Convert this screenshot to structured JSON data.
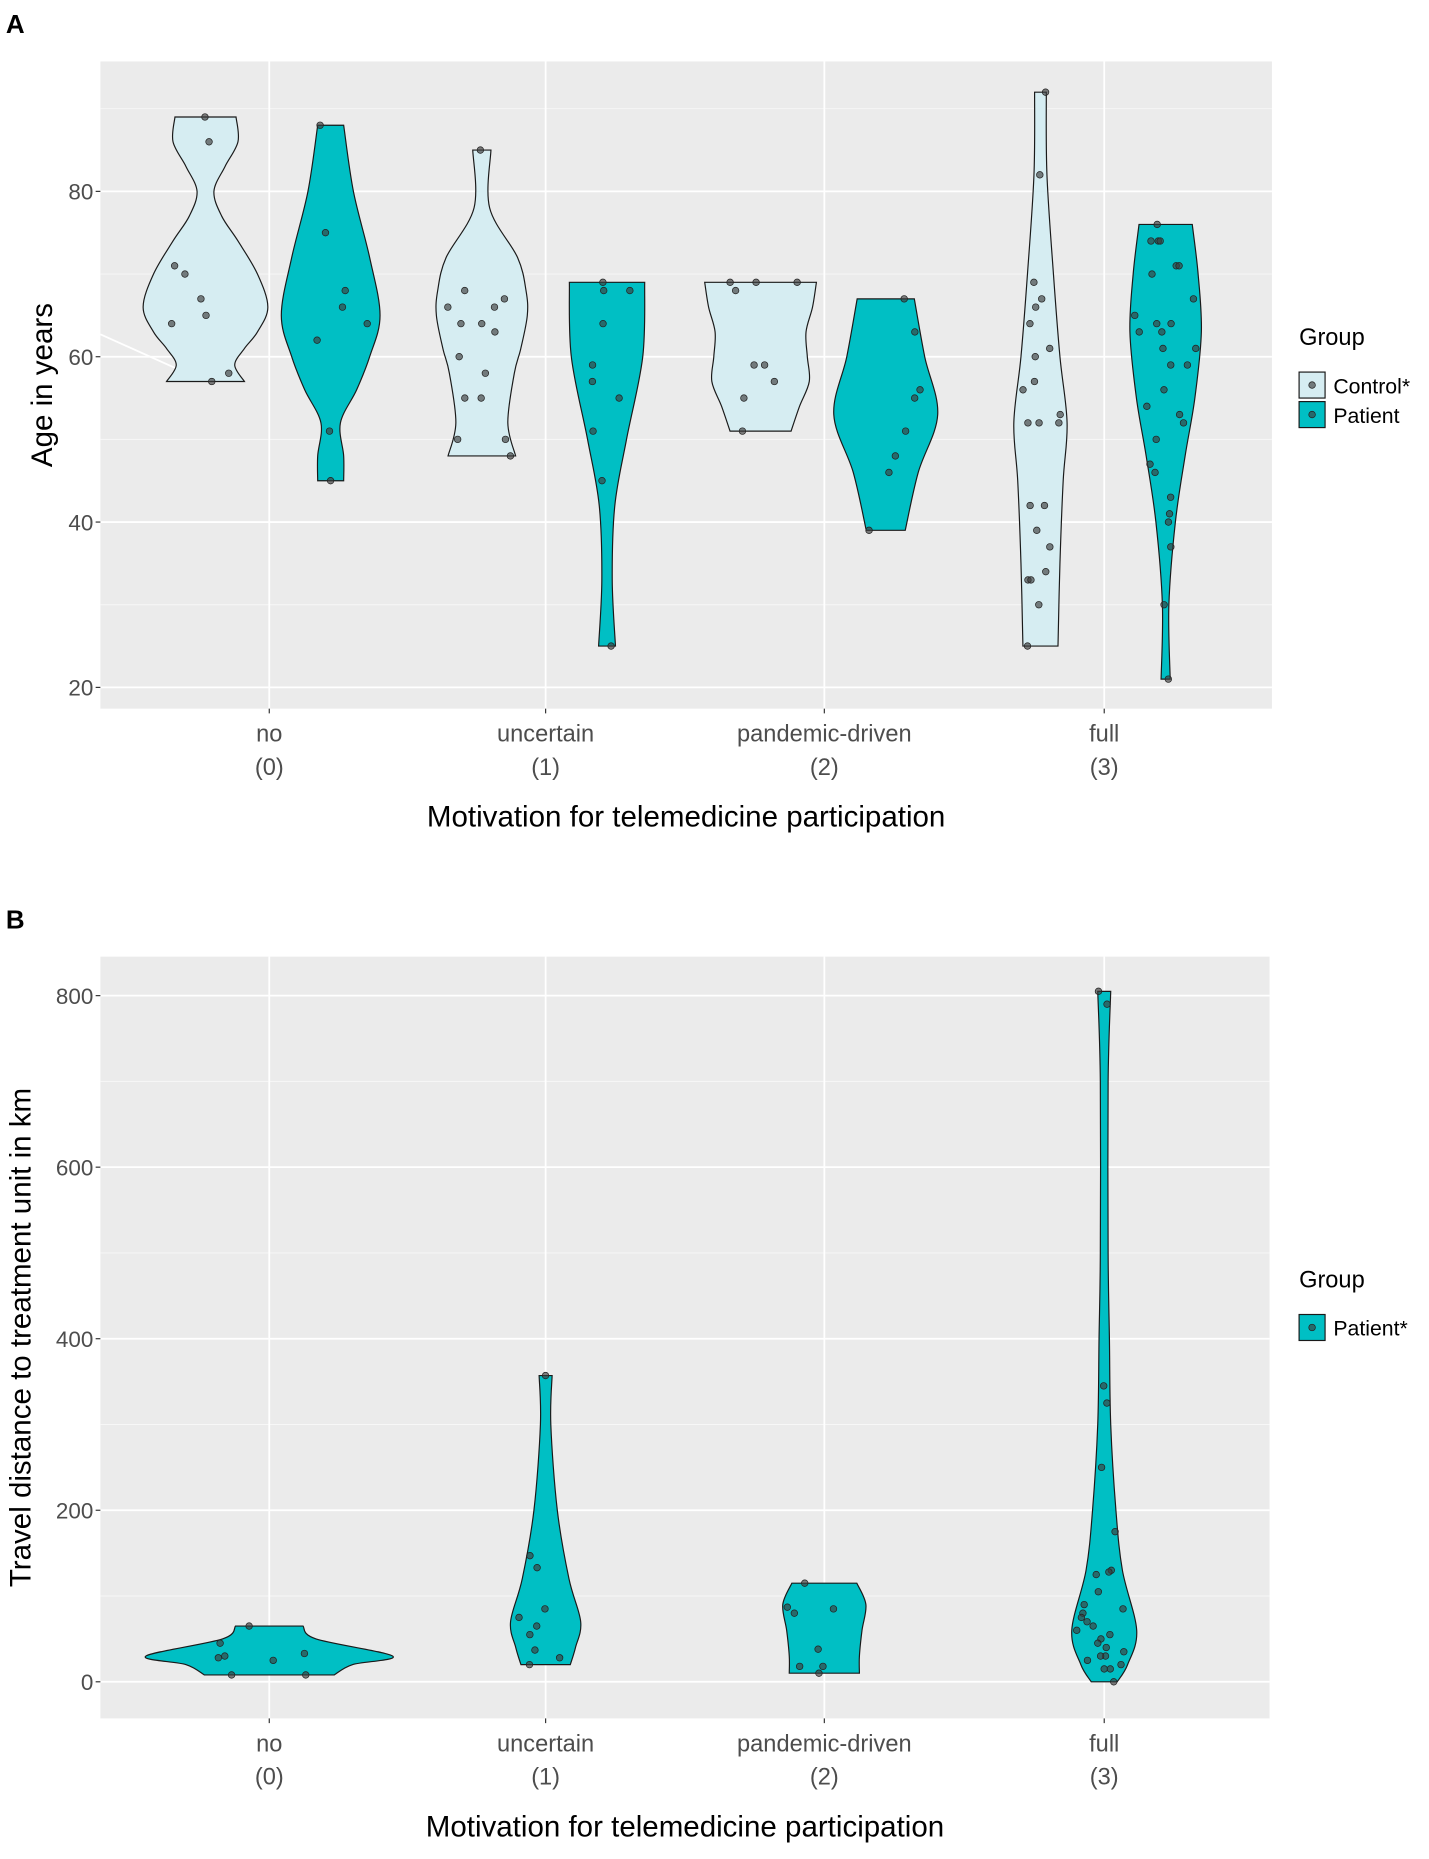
{
  "chart_data": [
    {
      "panel_label": "A",
      "type": "violin",
      "xlabel": "Motivation for telemedicine participation",
      "ylabel": "Age in years",
      "categories": [
        [
          "no",
          "(0)"
        ],
        [
          "uncertain",
          "(1)"
        ],
        [
          "pandemic-driven",
          "(2)"
        ],
        [
          "full",
          "(3)"
        ]
      ],
      "ylim": [
        18,
        96
      ],
      "yticks": [
        20,
        40,
        60,
        80
      ],
      "grid": true,
      "legend": {
        "title": "Group",
        "position": "right",
        "entries": [
          "Control*",
          "Patient"
        ]
      },
      "colors": {
        "Control": "#d6edf2",
        "Patient": "#00bfc4"
      },
      "series": [
        {
          "name": "Control",
          "violins": [
            {
              "profile": [
                [
                  89,
                  0.47
                ],
                [
                  86,
                  0.5
                ],
                [
                  83,
                  0.3
                ],
                [
                  80,
                  0.13
                ],
                [
                  77,
                  0.25
                ],
                [
                  74,
                  0.5
                ],
                [
                  70,
                  0.8
                ],
                [
                  66,
                  0.96
                ],
                [
                  63,
                  0.8
                ],
                [
                  61,
                  0.6
                ],
                [
                  59,
                  0.45
                ],
                [
                  57,
                  0.6
                ]
              ],
              "points": [
                89,
                86,
                71,
                70,
                67,
                65,
                64,
                58,
                57
              ]
            },
            {
              "profile": [
                [
                  85,
                  0.14
                ],
                [
                  78,
                  0.12
                ],
                [
                  72,
                  0.55
                ],
                [
                  68,
                  0.68
                ],
                [
                  65,
                  0.7
                ],
                [
                  61,
                  0.6
                ],
                [
                  58,
                  0.5
                ],
                [
                  52,
                  0.4
                ],
                [
                  48,
                  0.52
                ]
              ],
              "points": [
                85,
                68,
                67,
                66,
                66,
                64,
                64,
                63,
                60,
                58,
                55,
                55,
                50,
                50,
                48
              ]
            },
            {
              "profile": [
                [
                  69,
                  0.86
                ],
                [
                  66,
                  0.8
                ],
                [
                  63,
                  0.7
                ],
                [
                  60,
                  0.72
                ],
                [
                  57,
                  0.75
                ],
                [
                  54,
                  0.6
                ],
                [
                  51,
                  0.47
                ]
              ],
              "points": [
                69,
                69,
                69,
                68,
                59,
                59,
                57,
                55,
                51
              ]
            },
            {
              "profile": [
                [
                  92,
                  0.09
                ],
                [
                  82,
                  0.1
                ],
                [
                  70,
                  0.2
                ],
                [
                  60,
                  0.3
                ],
                [
                  52,
                  0.41
                ],
                [
                  45,
                  0.35
                ],
                [
                  35,
                  0.3
                ],
                [
                  25,
                  0.27
                ]
              ],
              "points": [
                92,
                82,
                69,
                67,
                66,
                64,
                61,
                60,
                57,
                56,
                53,
                52,
                52,
                52,
                42,
                42,
                39,
                37,
                34,
                33,
                33,
                30,
                25
              ]
            }
          ]
        },
        {
          "name": "Patient",
          "violins": [
            {
              "profile": [
                [
                  88,
                  0.2
                ],
                [
                  80,
                  0.35
                ],
                [
                  72,
                  0.6
                ],
                [
                  65,
                  0.76
                ],
                [
                  60,
                  0.6
                ],
                [
                  56,
                  0.4
                ],
                [
                  52,
                  0.15
                ],
                [
                  48,
                  0.2
                ],
                [
                  45,
                  0.2
                ]
              ],
              "points": [
                88,
                75,
                68,
                66,
                64,
                62,
                51,
                45
              ]
            },
            {
              "profile": [
                [
                  69,
                  0.58
                ],
                [
                  60,
                  0.55
                ],
                [
                  50,
                  0.3
                ],
                [
                  42,
                  0.12
                ],
                [
                  33,
                  0.08
                ],
                [
                  25,
                  0.13
                ]
              ],
              "points": [
                69,
                68,
                68,
                64,
                59,
                57,
                55,
                51,
                45,
                25
              ]
            },
            {
              "profile": [
                [
                  67,
                  0.44
                ],
                [
                  60,
                  0.6
                ],
                [
                  53,
                  0.8
                ],
                [
                  46,
                  0.5
                ],
                [
                  39,
                  0.3
                ]
              ],
              "points": [
                67,
                63,
                56,
                55,
                51,
                48,
                46,
                39
              ]
            },
            {
              "profile": [
                [
                  76,
                  0.41
                ],
                [
                  70,
                  0.5
                ],
                [
                  63,
                  0.55
                ],
                [
                  55,
                  0.45
                ],
                [
                  48,
                  0.3
                ],
                [
                  40,
                  0.15
                ],
                [
                  30,
                  0.05
                ],
                [
                  21,
                  0.07
                ]
              ],
              "points": [
                76,
                74,
                74,
                74,
                71,
                71,
                70,
                67,
                65,
                64,
                64,
                63,
                63,
                61,
                61,
                59,
                59,
                56,
                54,
                53,
                52,
                50,
                47,
                46,
                43,
                41,
                40,
                37,
                30,
                21
              ]
            }
          ]
        }
      ]
    },
    {
      "panel_label": "B",
      "type": "violin",
      "xlabel": "Motivation for telemedicine participation",
      "ylabel": "Travel distance to treatment unit in km",
      "categories": [
        [
          "no",
          "(0)"
        ],
        [
          "uncertain",
          "(1)"
        ],
        [
          "pandemic-driven",
          "(2)"
        ],
        [
          "full",
          "(3)"
        ]
      ],
      "ylim": [
        -40,
        845
      ],
      "yticks": [
        0,
        200,
        400,
        600,
        800
      ],
      "grid": true,
      "legend": {
        "title": "Group",
        "position": "right",
        "entries": [
          "Patient*"
        ]
      },
      "colors": {
        "Patient": "#00bfc4"
      },
      "series": [
        {
          "name": "Patient",
          "violins": [
            {
              "profile": [
                [
                  65,
                  0.26
                ],
                [
                  50,
                  0.36
                ],
                [
                  30,
                  0.95
                ],
                [
                  20,
                  0.64
                ],
                [
                  8,
                  0.5
                ]
              ],
              "points": [
                65,
                45,
                30,
                28,
                25,
                33,
                8,
                8
              ]
            },
            {
              "profile": [
                [
                  357,
                  0.05
                ],
                [
                  300,
                  0.04
                ],
                [
                  200,
                  0.09
                ],
                [
                  120,
                  0.18
                ],
                [
                  70,
                  0.27
                ],
                [
                  40,
                  0.23
                ],
                [
                  20,
                  0.19
                ]
              ],
              "points": [
                357,
                147,
                133,
                85,
                75,
                65,
                55,
                37,
                28,
                20
              ]
            },
            {
              "profile": [
                [
                  115,
                  0.25
                ],
                [
                  90,
                  0.32
                ],
                [
                  60,
                  0.29
                ],
                [
                  30,
                  0.27
                ],
                [
                  10,
                  0.27
                ]
              ],
              "points": [
                115,
                87,
                85,
                80,
                38,
                18,
                18,
                10
              ]
            },
            {
              "profile": [
                [
                  805,
                  0.05
                ],
                [
                  700,
                  0.03
                ],
                [
                  500,
                  0.03
                ],
                [
                  400,
                  0.04
                ],
                [
                  300,
                  0.05
                ],
                [
                  200,
                  0.09
                ],
                [
                  130,
                  0.14
                ],
                [
                  60,
                  0.25
                ],
                [
                  20,
                  0.18
                ],
                [
                  0,
                  0.1
                ]
              ],
              "points": [
                805,
                790,
                345,
                325,
                250,
                175,
                130,
                128,
                125,
                105,
                90,
                85,
                80,
                75,
                70,
                65,
                60,
                55,
                50,
                45,
                40,
                35,
                30,
                30,
                25,
                20,
                15,
                15,
                0
              ]
            }
          ]
        }
      ]
    }
  ]
}
